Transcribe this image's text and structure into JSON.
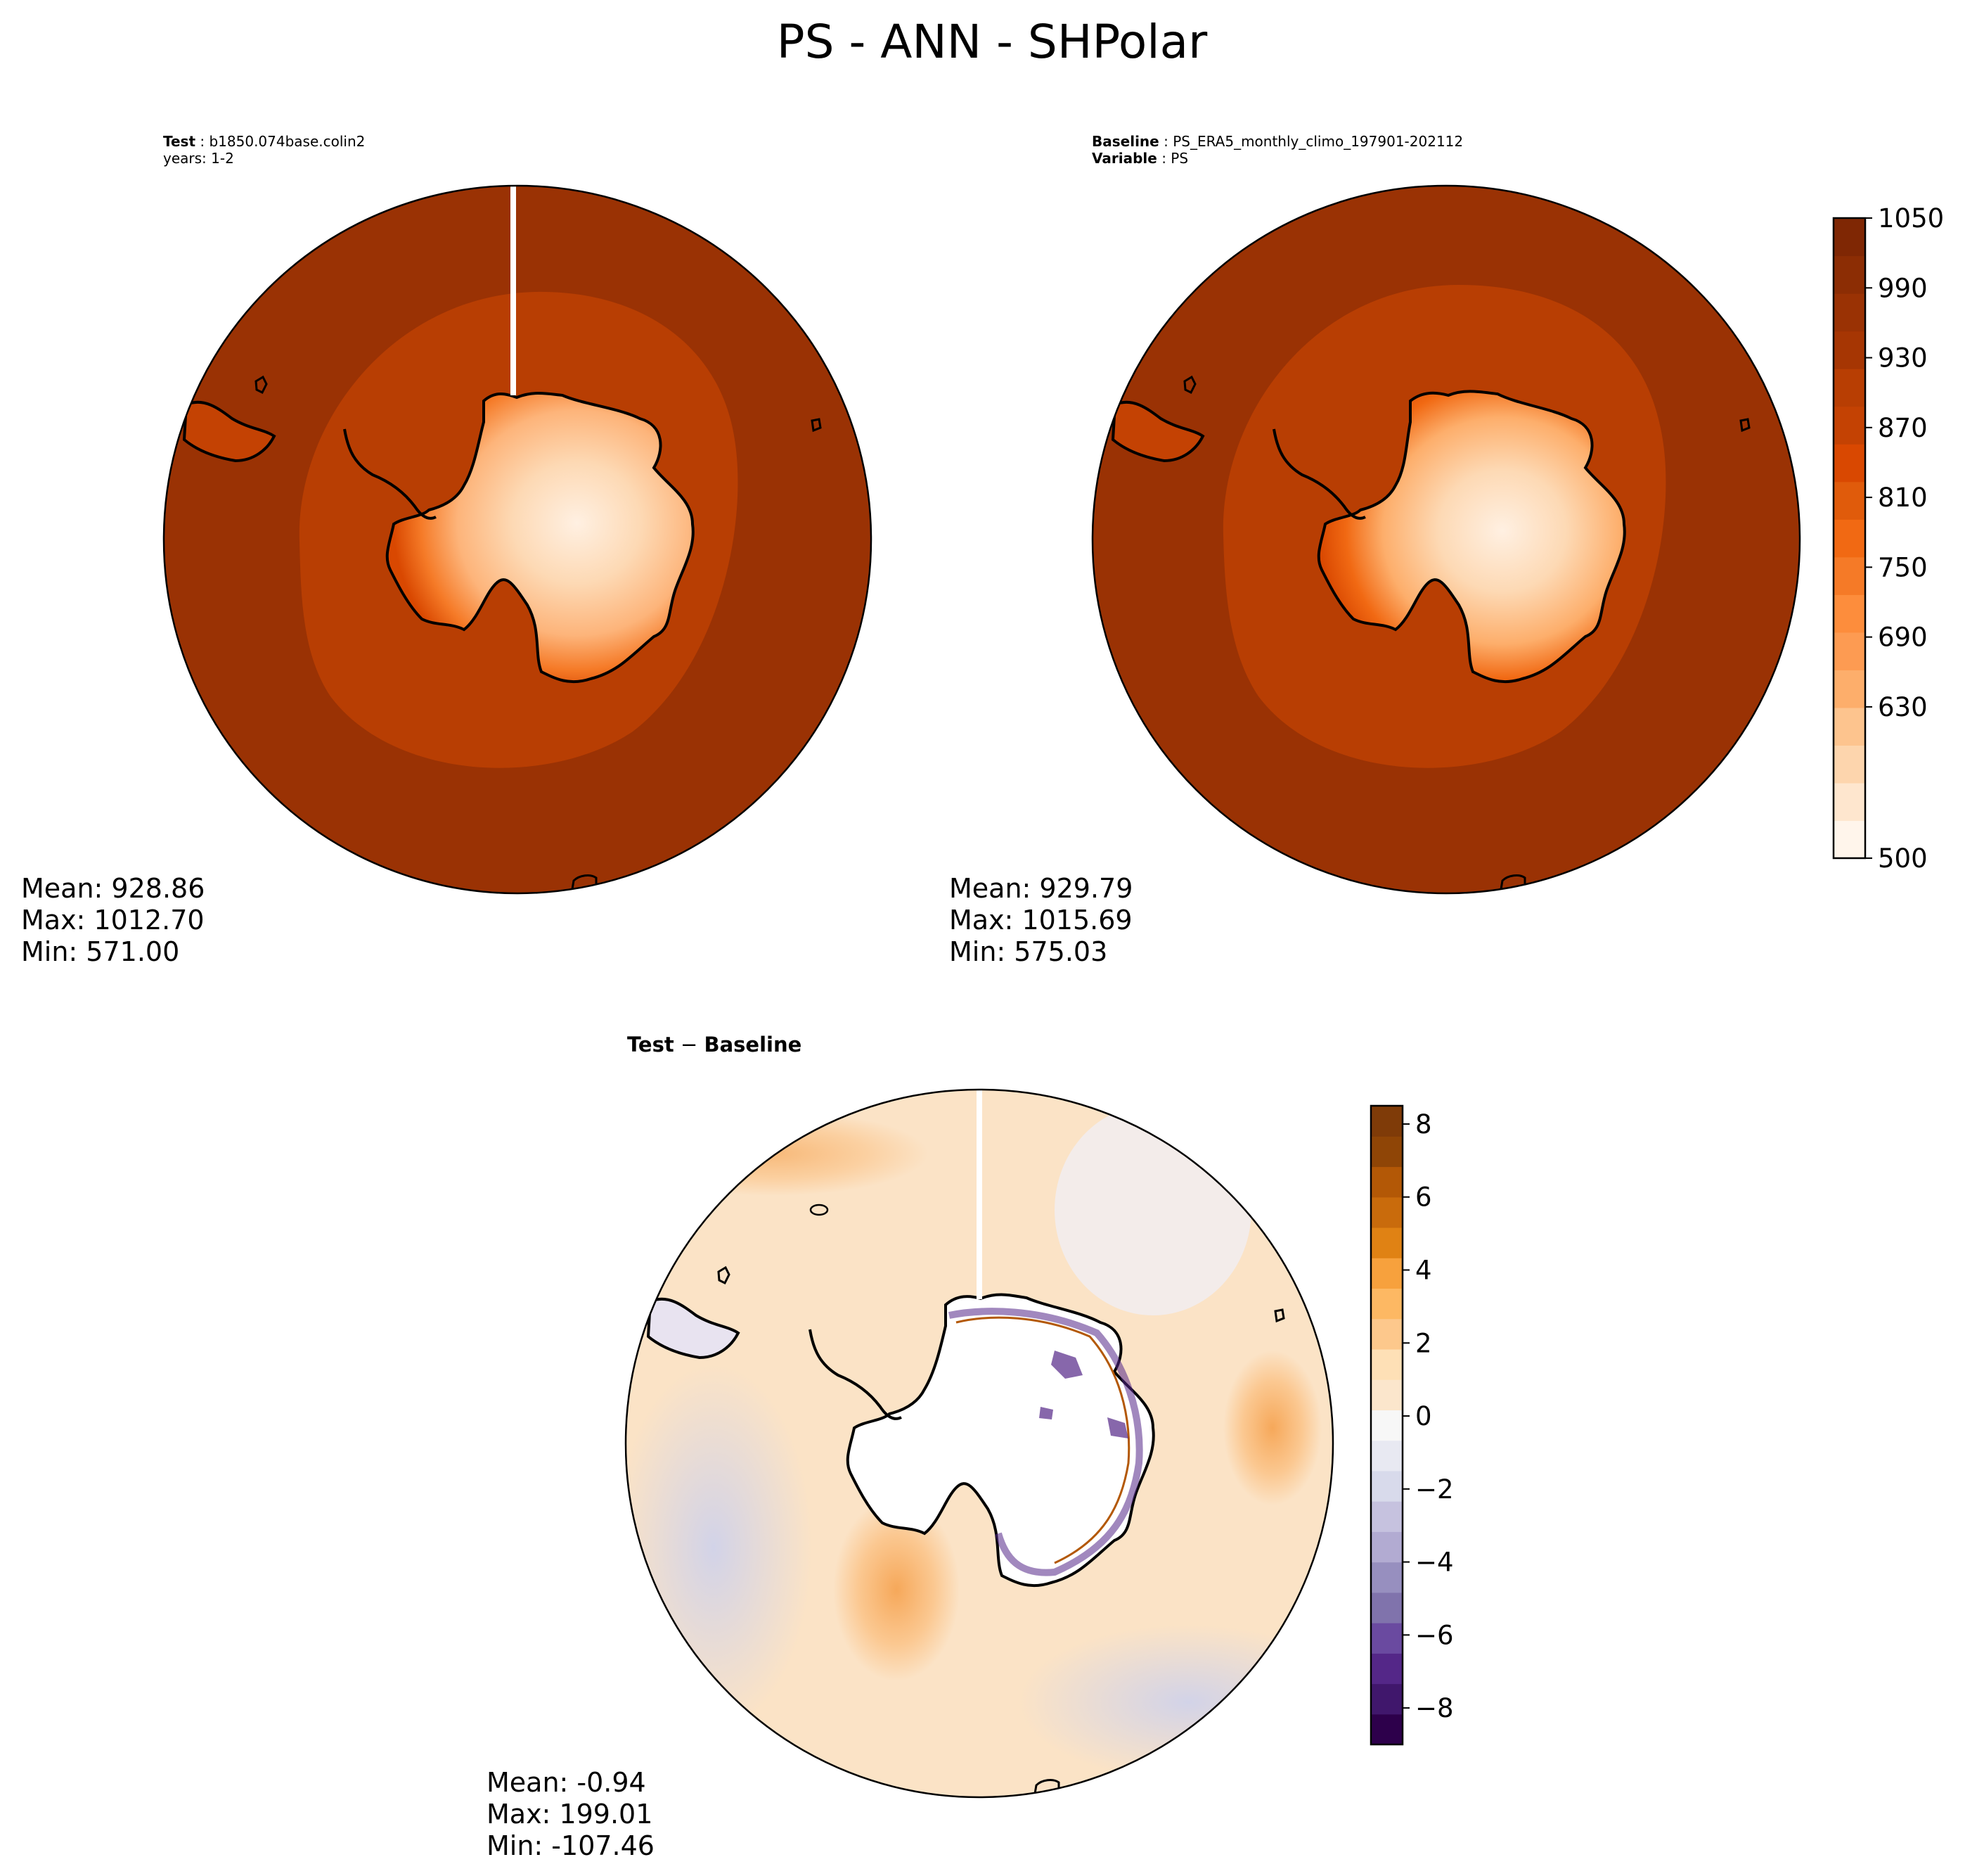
{
  "figure": {
    "title": "PS - ANN - SHPolar"
  },
  "colors": {
    "abs_scale": [
      "#fff5eb",
      "#fee6ce",
      "#fdd5ad",
      "#fdc48e",
      "#fdae6b",
      "#fd9b52",
      "#fd8d3c",
      "#f57a27",
      "#f16913",
      "#e05b0b",
      "#d94801",
      "#c44203",
      "#b83e03",
      "#a63603",
      "#9a3204",
      "#8c2d04",
      "#7f2704"
    ],
    "diff_scale": [
      "#2d004b",
      "#40176c",
      "#542788",
      "#6a4aa0",
      "#8073ac",
      "#978fbf",
      "#b2abd2",
      "#c6c2df",
      "#d8daeb",
      "#e8e9f2",
      "#f7f7f7",
      "#fbe6cc",
      "#fee0b6",
      "#fdc88c",
      "#fdb863",
      "#f7a13d",
      "#e08214",
      "#c96b0c",
      "#b35806",
      "#8f4506",
      "#7f3b08"
    ],
    "coast": "#000000",
    "ocean_abs": "#9a3204",
    "ocean_inner_abs": "#b83e03"
  },
  "panels": {
    "test": {
      "label": "Test",
      "name": "b1850.074base.colin2",
      "years": "years: 1-2",
      "stats": {
        "mean": "Mean: 928.86",
        "max": "Max: 1012.70",
        "min": "Min: 571.00"
      }
    },
    "baseline": {
      "label": "Baseline",
      "name": "PS_ERA5_monthly_climo_197901-202112",
      "variable_label": "Variable",
      "variable": "PS",
      "stats": {
        "mean": "Mean: 929.79",
        "max": "Max: 1015.69",
        "min": "Min: 575.03"
      }
    },
    "diff": {
      "title_a": "Test",
      "title_op": " − ",
      "title_b": "Baseline",
      "stats": {
        "mean": "Mean: -0.94",
        "max": "Max: 199.01",
        "min": "Min: -107.46"
      }
    }
  },
  "chart_data": [
    {
      "type": "heatmap",
      "panel": "test",
      "projection": "south-polar-stereographic",
      "colorbar": {
        "shared_with": "baseline"
      },
      "stats": {
        "mean": 928.86,
        "max": 1012.7,
        "min": 571.0
      }
    },
    {
      "type": "heatmap",
      "panel": "baseline",
      "projection": "south-polar-stereographic",
      "colorbar": {
        "range": [
          500,
          1050
        ],
        "ticks": [
          "500",
          "630",
          "690",
          "750",
          "810",
          "870",
          "930",
          "990",
          "1050"
        ],
        "tick_values": [
          500,
          630,
          690,
          750,
          810,
          870,
          930,
          990,
          1050
        ]
      },
      "stats": {
        "mean": 929.79,
        "max": 1015.69,
        "min": 575.03
      }
    },
    {
      "type": "heatmap",
      "panel": "diff",
      "projection": "south-polar-stereographic",
      "colorbar": {
        "range": [
          -9,
          8.5
        ],
        "ticks": [
          "−8",
          "−6",
          "−4",
          "−2",
          "0",
          "2",
          "4",
          "6",
          "8"
        ],
        "tick_values": [
          -8,
          -6,
          -4,
          -2,
          0,
          2,
          4,
          6,
          8
        ]
      },
      "stats": {
        "mean": -0.94,
        "max": 199.01,
        "min": -107.46
      }
    }
  ]
}
